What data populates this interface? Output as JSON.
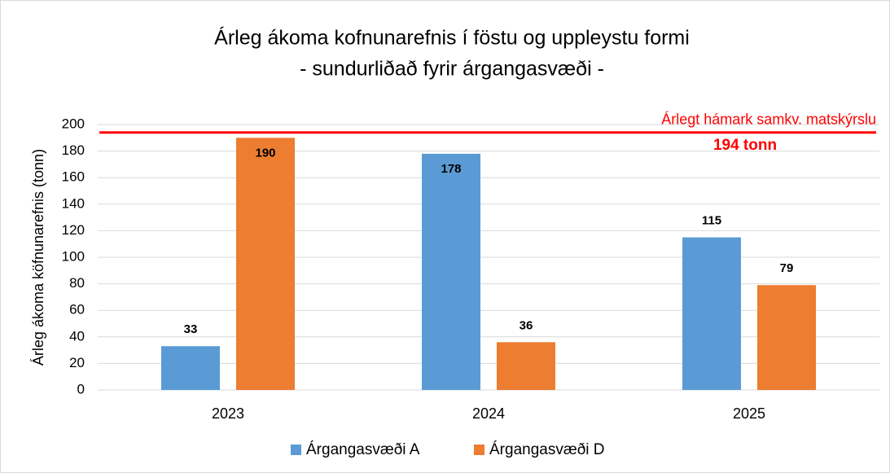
{
  "chart_data": {
    "type": "bar",
    "title": "Árleg ákoma kofnunarefnis í föstu og uppleystu formi",
    "subtitle": "- sundurliðað fyrir árgangasvæði -",
    "y_label": "Árleg ákoma köfnunarefnis (tonn)",
    "categories": [
      "2023",
      "2024",
      "2025"
    ],
    "series": [
      {
        "name": "Árgangasvæði A",
        "color": "#5b9bd5",
        "values": [
          33,
          178,
          115
        ]
      },
      {
        "name": "Árgangasvæði D",
        "color": "#ed7d31",
        "values": [
          190,
          36,
          79
        ]
      }
    ],
    "ylim": [
      0,
      200
    ],
    "yticks": [
      0,
      20,
      40,
      60,
      80,
      100,
      120,
      140,
      160,
      180,
      200
    ],
    "grid": true,
    "legend": "bottom",
    "reference_line": {
      "value": 194,
      "label": "Árlegt hámark samkv. matskýrslu",
      "value_label": "194 tonn",
      "color": "#ff0000"
    }
  }
}
